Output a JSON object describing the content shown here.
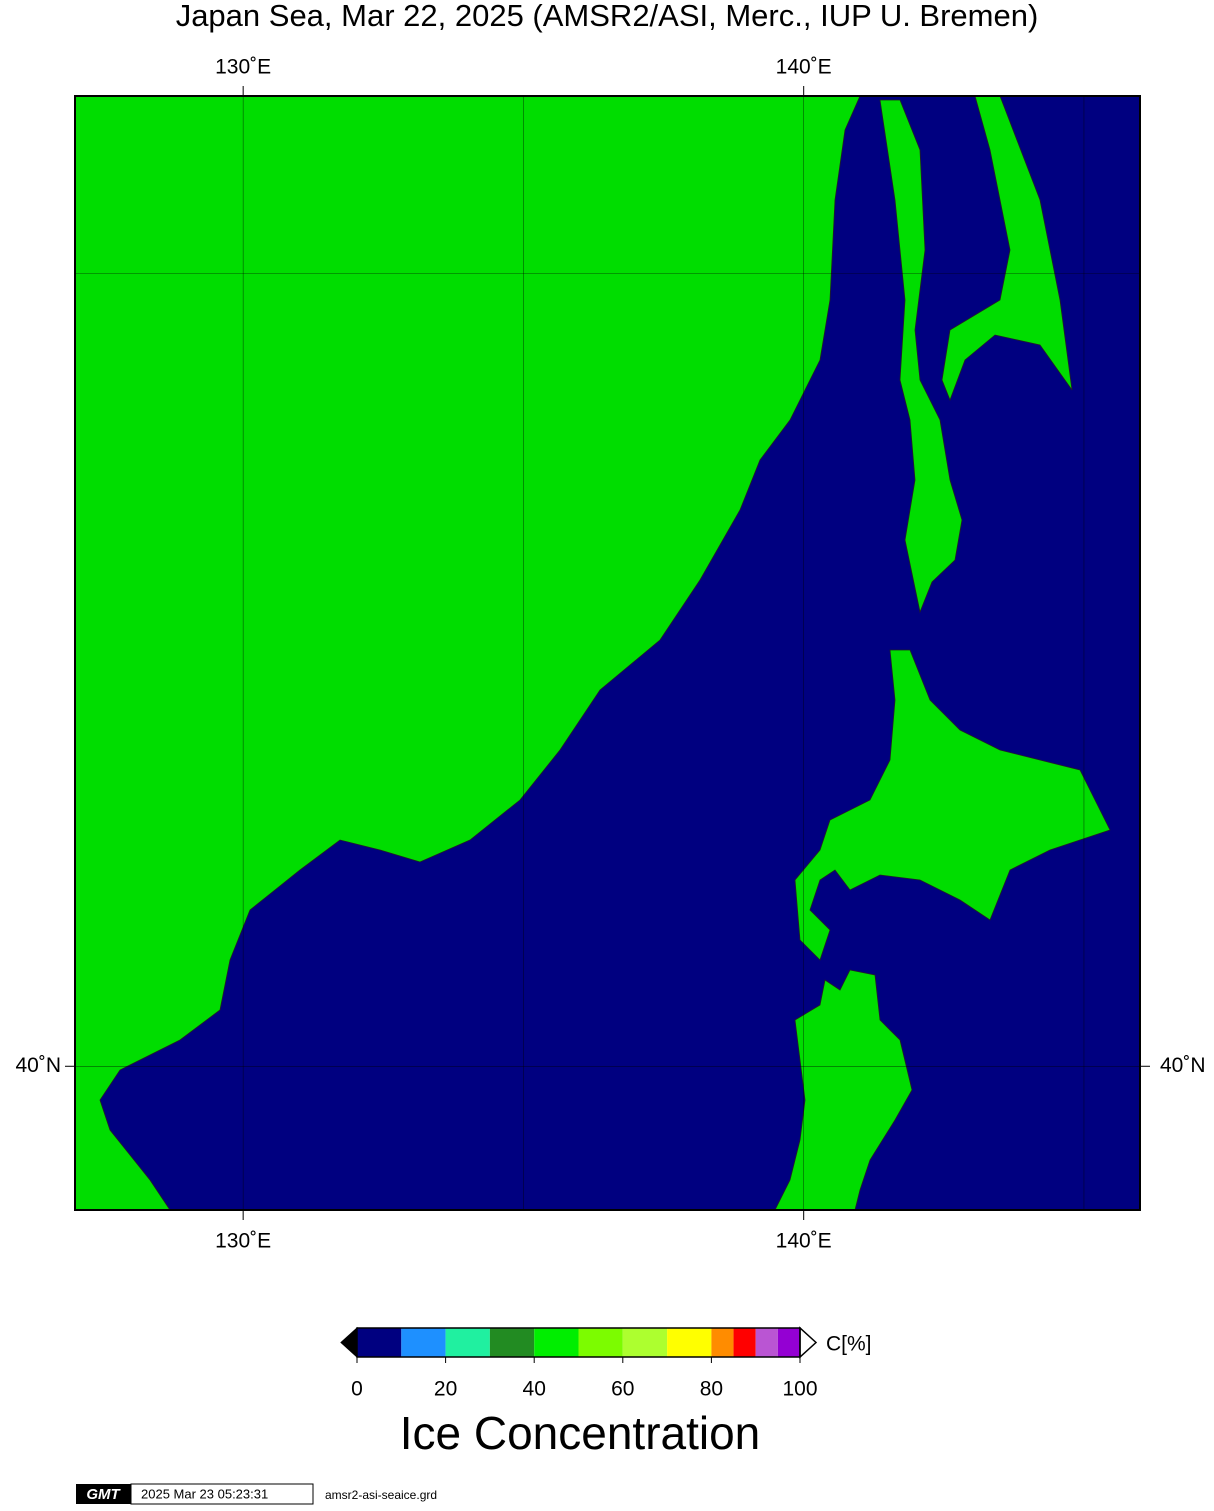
{
  "title": "Japan Sea, Mar 22, 2025 (AMSR2/ASI, Merc., IUP U. Bremen)",
  "map": {
    "projection": "mercator",
    "lonlim": [
      127,
      146
    ],
    "latlim": [
      38,
      52
    ],
    "lon_ticks": [
      {
        "value": 130,
        "label": "130˚E"
      },
      {
        "value": 140,
        "label": "140˚E"
      }
    ],
    "lat_ticks": [
      {
        "value": 40,
        "label": "40˚N"
      }
    ],
    "lon_grid": [
      130,
      135,
      140,
      145
    ],
    "lat_grid": [
      40,
      50
    ],
    "ocean_color": "#000080",
    "land_color": "#00dd00"
  },
  "colorbar": {
    "label": "C[%]",
    "title": "Ice Concentration",
    "lim": [
      0,
      100
    ],
    "bounds": [
      0,
      10,
      20,
      30,
      40,
      50,
      60,
      70,
      80,
      85,
      90,
      95,
      100
    ],
    "colors": [
      "#000080",
      "#1e90ff",
      "#20f0a0",
      "#228b22",
      "#00ee00",
      "#7cfc00",
      "#adff2f",
      "#ffff00",
      "#ff8c00",
      "#ff0000",
      "#ba55d3",
      "#9400d3"
    ],
    "ticks": [
      0,
      20,
      40,
      60,
      80,
      100
    ]
  },
  "footer": {
    "logo": "GMT",
    "timestamp": "2025 Mar 23 05:23:31",
    "file": "amsr2-asi-seaice.grd"
  }
}
